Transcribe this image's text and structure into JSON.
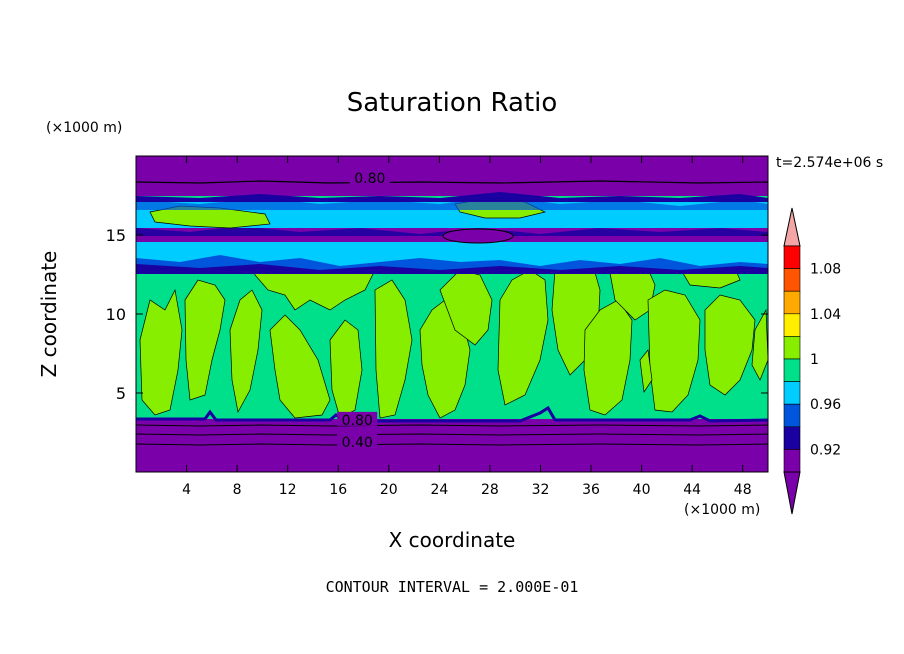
{
  "chart_data": {
    "type": "heatmap",
    "title": "Saturation Ratio",
    "time_label": "t=2.574e+06 s",
    "xlabel": "X coordinate",
    "ylabel": "Z coordinate",
    "x_unit": "(×1000 m)",
    "y_unit": "(×1000 m)",
    "xlim": [
      0,
      50
    ],
    "ylim": [
      0,
      20
    ],
    "x_ticks": [
      4,
      8,
      12,
      16,
      20,
      24,
      28,
      32,
      36,
      40,
      44,
      48
    ],
    "y_ticks": [
      5,
      10,
      15
    ],
    "footer": "CONTOUR INTERVAL = 2.000E-01",
    "contour_labels": [
      {
        "text": "0.80",
        "x": 18.5,
        "z": 18.6
      },
      {
        "text": "0.80",
        "x": 17.5,
        "z": 3.3
      },
      {
        "text": "0.40",
        "x": 17.5,
        "z": 1.9
      }
    ],
    "colorbar": {
      "tick_labels": [
        "1.08",
        "1.04",
        "1",
        "0.96",
        "0.92"
      ],
      "levels": [
        0.92,
        0.94,
        0.96,
        0.98,
        1.0,
        1.02,
        1.04,
        1.06,
        1.08
      ],
      "colors": [
        "#7a00aa",
        "#1a00a0",
        "#0055dd",
        "#00ccff",
        "#00e08a",
        "#88ee00",
        "#ffee00",
        "#ffaa00",
        "#ff5500",
        "#ff0000"
      ],
      "extend_over_color": "#f4a6a6",
      "extend_under_color": "#7a00aa"
    },
    "bands": [
      {
        "z_bottom": 0.0,
        "z_top": 3.3,
        "value": 0.4
      },
      {
        "z_bottom": 3.3,
        "z_top": 3.5,
        "value": 0.95
      },
      {
        "z_bottom": 3.5,
        "z_top": 12.8,
        "value": 1.0
      },
      {
        "z_bottom": 12.8,
        "z_top": 13.5,
        "value": 0.93
      },
      {
        "z_bottom": 13.5,
        "z_top": 14.8,
        "value": 0.98
      },
      {
        "z_bottom": 14.8,
        "z_top": 15.5,
        "value": 0.92
      },
      {
        "z_bottom": 15.5,
        "z_top": 16.7,
        "value": 0.97
      },
      {
        "z_bottom": 16.7,
        "z_top": 17.2,
        "value": 0.95
      },
      {
        "z_bottom": 17.2,
        "z_top": 20.0,
        "value": 0.8
      }
    ]
  }
}
